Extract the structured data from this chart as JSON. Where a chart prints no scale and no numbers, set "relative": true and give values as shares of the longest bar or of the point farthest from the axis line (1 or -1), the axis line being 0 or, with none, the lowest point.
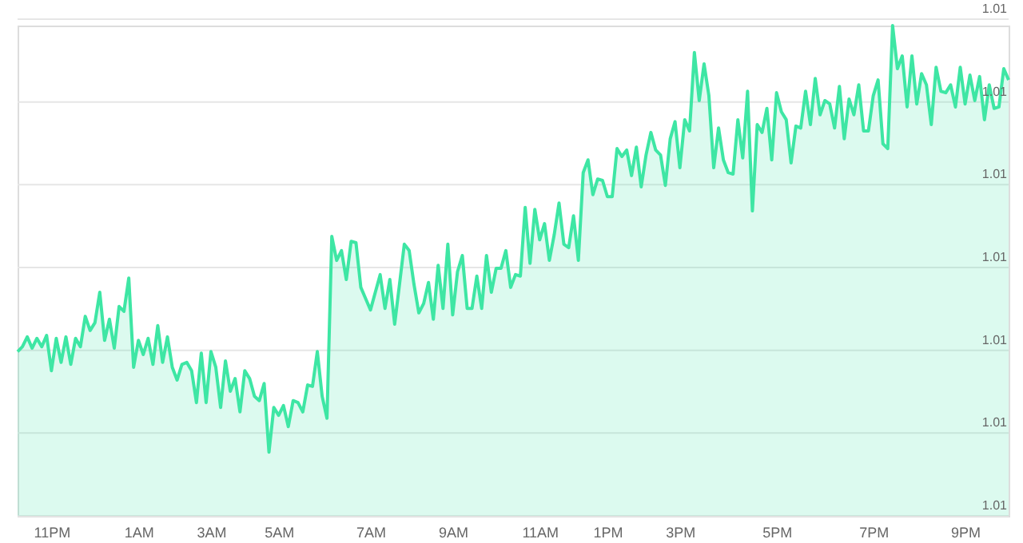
{
  "chart_data": {
    "type": "area",
    "relative": true,
    "grid": "y",
    "categories": [
      null,
      null,
      null,
      null,
      null,
      null,
      null,
      "11PM",
      null,
      null,
      null,
      null,
      null,
      null,
      null,
      null,
      null,
      null,
      null,
      null,
      null,
      null,
      null,
      null,
      null,
      "1AM",
      null,
      null,
      null,
      null,
      null,
      null,
      null,
      null,
      null,
      null,
      null,
      null,
      null,
      null,
      "3AM",
      null,
      null,
      null,
      null,
      null,
      null,
      null,
      null,
      null,
      null,
      null,
      null,
      null,
      "5AM",
      null,
      null,
      null,
      null,
      null,
      null,
      null,
      null,
      null,
      null,
      null,
      null,
      null,
      null,
      null,
      null,
      null,
      null,
      "7AM",
      null,
      null,
      null,
      null,
      null,
      null,
      null,
      null,
      null,
      null,
      null,
      null,
      null,
      null,
      null,
      null,
      "9AM",
      null,
      null,
      null,
      null,
      null,
      null,
      null,
      null,
      null,
      null,
      null,
      null,
      null,
      null,
      null,
      null,
      null,
      "11AM",
      null,
      null,
      null,
      null,
      null,
      null,
      null,
      null,
      null,
      null,
      null,
      null,
      null,
      "1PM",
      null,
      null,
      null,
      null,
      null,
      null,
      null,
      null,
      null,
      null,
      null,
      null,
      null,
      null,
      "3PM",
      null,
      null,
      null,
      null,
      null,
      null,
      null,
      null,
      null,
      null,
      null,
      null,
      null,
      null,
      null,
      null,
      null,
      null,
      null,
      "5PM",
      null,
      null,
      null,
      null,
      null,
      null,
      null,
      null,
      null,
      null,
      null,
      null,
      null,
      null,
      null,
      null,
      null,
      null,
      null,
      "7PM",
      null,
      null,
      null,
      null,
      null,
      null,
      null,
      null,
      null,
      null,
      null,
      null,
      null,
      null,
      null,
      null,
      null,
      null,
      "9PM",
      null,
      null,
      null,
      null,
      null,
      null,
      null,
      null,
      null
    ],
    "annotations": [
      "1.01",
      "1.01",
      "1.01",
      "1.01",
      "1.01",
      "1.01",
      "1.01"
    ],
    "series": [
      {
        "color": "#3ee6a4",
        "values": [
          0.335,
          0.345,
          0.365,
          0.342,
          0.362,
          0.345,
          0.368,
          0.296,
          0.362,
          0.313,
          0.365,
          0.309,
          0.362,
          0.345,
          0.407,
          0.378,
          0.394,
          0.456,
          0.358,
          0.401,
          0.342,
          0.427,
          0.417,
          0.485,
          0.303,
          0.358,
          0.329,
          0.362,
          0.309,
          0.388,
          0.313,
          0.365,
          0.303,
          0.277,
          0.309,
          0.313,
          0.296,
          0.231,
          0.332,
          0.231,
          0.335,
          0.303,
          0.221,
          0.316,
          0.254,
          0.28,
          0.212,
          0.296,
          0.28,
          0.244,
          0.235,
          0.27,
          0.13,
          0.221,
          0.205,
          0.225,
          0.182,
          0.235,
          0.231,
          0.212,
          0.267,
          0.264,
          0.335,
          0.244,
          0.199,
          0.57,
          0.521,
          0.541,
          0.482,
          0.56,
          0.557,
          0.466,
          0.443,
          0.42,
          0.456,
          0.492,
          0.423,
          0.482,
          0.391,
          0.472,
          0.554,
          0.541,
          0.472,
          0.414,
          0.433,
          0.476,
          0.401,
          0.511,
          0.423,
          0.554,
          0.41,
          0.498,
          0.531,
          0.423,
          0.423,
          0.489,
          0.423,
          0.531,
          0.456,
          0.505,
          0.505,
          0.541,
          0.466,
          0.492,
          0.489,
          0.629,
          0.515,
          0.625,
          0.563,
          0.596,
          0.521,
          0.573,
          0.638,
          0.554,
          0.547,
          0.612,
          0.521,
          0.7,
          0.726,
          0.655,
          0.687,
          0.684,
          0.651,
          0.651,
          0.749,
          0.733,
          0.746,
          0.694,
          0.752,
          0.671,
          0.736,
          0.782,
          0.746,
          0.736,
          0.674,
          0.769,
          0.804,
          0.71,
          0.808,
          0.785,
          0.945,
          0.847,
          0.922,
          0.857,
          0.71,
          0.791,
          0.726,
          0.7,
          0.697,
          0.808,
          0.73,
          0.866,
          0.622,
          0.798,
          0.782,
          0.831,
          0.726,
          0.863,
          0.824,
          0.808,
          0.72,
          0.795,
          0.791,
          0.866,
          0.798,
          0.892,
          0.818,
          0.847,
          0.84,
          0.791,
          0.876,
          0.769,
          0.85,
          0.818,
          0.879,
          0.785,
          0.785,
          0.857,
          0.889,
          0.759,
          0.749,
          1.0,
          0.912,
          0.938,
          0.834,
          0.938,
          0.84,
          0.902,
          0.879,
          0.798,
          0.915,
          0.866,
          0.863,
          0.879,
          0.834,
          0.915,
          0.84,
          0.899,
          0.847,
          0.896,
          0.808,
          0.879,
          0.831,
          0.834,
          0.912,
          0.889
        ]
      }
    ]
  }
}
